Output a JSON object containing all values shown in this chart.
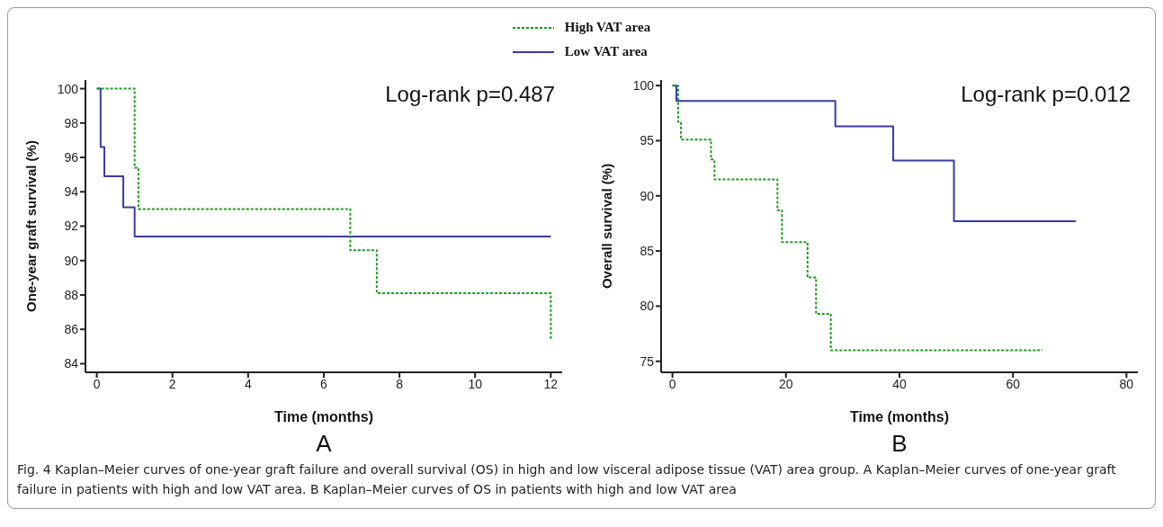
{
  "chart_data": [
    {
      "type": "step",
      "title": "A",
      "xlabel": "Time (months)",
      "ylabel": "One-year graft survival (%)",
      "legend": "top",
      "marker": "none",
      "xlim": [
        -0.3,
        12.3
      ],
      "xticks": [
        0,
        2,
        4,
        6,
        8,
        10,
        12
      ],
      "ylim": [
        83.5,
        100.5
      ],
      "yticks": [
        84,
        86,
        88,
        90,
        92,
        94,
        96,
        98,
        100
      ],
      "annotations": [
        "Log-rank p=0.487",
        "Fig. 4  Kaplan–Meier curves of one-year graft failure and overall survival (OS) in high and low visceral adipose tissue (VAT) area group. A Kaplan–Meier curves of one-year graft failure in patients with high and low VAT area. B Kaplan–Meier curves of OS in patients with high and low VAT area"
      ],
      "series": [
        {
          "name": "High VAT area",
          "color": "#1e9a1e",
          "line_style": "dashed",
          "x": [
            0,
            1.0,
            1.1,
            6.7,
            7.4,
            12
          ],
          "values": [
            100,
            95.4,
            93.0,
            90.6,
            88.1,
            85.4
          ]
        },
        {
          "name": "Low VAT area",
          "color": "#3b3ba6",
          "line_style": "solid",
          "x": [
            0,
            0.1,
            0.2,
            0.7,
            1.0,
            12
          ],
          "values": [
            100,
            96.6,
            94.9,
            93.1,
            91.4,
            91.4
          ]
        }
      ]
    },
    {
      "type": "step",
      "title": "B",
      "xlabel": "Time (months)",
      "ylabel": "Overall survival (%)",
      "marker": "none",
      "xlim": [
        -2,
        82
      ],
      "xticks": [
        0,
        20,
        40,
        60,
        80
      ],
      "ylim": [
        74,
        100.5
      ],
      "yticks": [
        75,
        80,
        85,
        90,
        95,
        100
      ],
      "annotations": [
        "Log-rank p=0.012"
      ],
      "series": [
        {
          "color": "#1e9a1e",
          "line_style": "dashed",
          "x": [
            0,
            1.0,
            1.5,
            6.8,
            7.4,
            18.5,
            19.3,
            23.8,
            25.3,
            27.9,
            65.2
          ],
          "values": [
            100,
            96.7,
            95.1,
            93.3,
            91.5,
            88.7,
            85.8,
            82.6,
            79.3,
            76.0,
            76.0
          ]
        },
        {
          "color": "#3b3ba6",
          "line_style": "solid",
          "x": [
            0,
            0.7,
            28.7,
            38.9,
            49.6,
            71.1
          ],
          "values": [
            100,
            98.6,
            96.3,
            93.2,
            87.7,
            87.7
          ]
        }
      ]
    }
  ]
}
